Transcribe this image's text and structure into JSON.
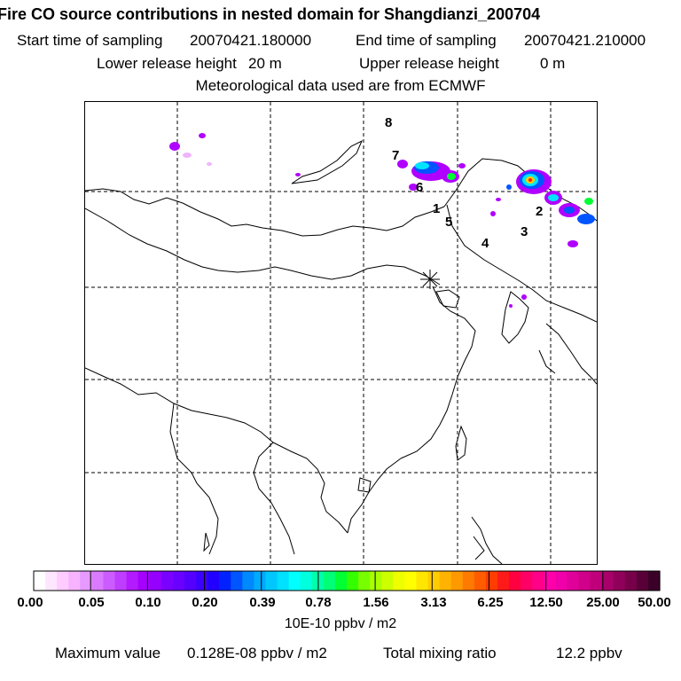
{
  "title": "Fire CO source contributions in nested domain for Shangdianzi_200704",
  "sampling": {
    "start_label": "Start time of sampling",
    "start_value": "20070421.180000",
    "end_label": "End time of sampling",
    "end_value": "20070421.210000"
  },
  "release": {
    "lower_label": "Lower release height",
    "lower_value": "20 m",
    "upper_label": "Upper release height",
    "upper_value": "0 m"
  },
  "meteo_note": "Meteorological data used are from ECMWF",
  "map": {
    "region_labels": [
      "1",
      "2",
      "3",
      "4",
      "5",
      "6",
      "7",
      "8"
    ],
    "station_marker": "asterisk-icon",
    "plume_color_high": "#ff2a2a",
    "plume_color_mid": "#00e5ff",
    "plume_color_low": "#b000ff"
  },
  "colorbar": {
    "tick_labels": [
      "0.00",
      "0.05",
      "0.10",
      "0.20",
      "0.39",
      "0.78",
      "1.56",
      "3.13",
      "6.25",
      "12.50",
      "25.00",
      "50.00"
    ],
    "unit": "10E-10 ppbv / m2",
    "colors": [
      "#ffffff",
      "#ffe6ff",
      "#ffccff",
      "#f7b3ff",
      "#e699ff",
      "#d97aff",
      "#cc5cff",
      "#bf3dff",
      "#b31aff",
      "#a600ff",
      "#9500ff",
      "#7a00ff",
      "#6a00ff",
      "#5500ff",
      "#3d00ff",
      "#2200ff",
      "#0022ff",
      "#0055ff",
      "#0088ff",
      "#00aaff",
      "#00c8ff",
      "#00e0ff",
      "#00ffff",
      "#00ffdd",
      "#00ffaa",
      "#00ff77",
      "#00ff33",
      "#33ff00",
      "#77ff00",
      "#aaff00",
      "#ccff00",
      "#eeff00",
      "#ffff00",
      "#ffe600",
      "#ffcc00",
      "#ffb300",
      "#ff9900",
      "#ff7a00",
      "#ff5c00",
      "#ff3d00",
      "#ff1a1a",
      "#ff0040",
      "#ff0066",
      "#ff0088",
      "#ff00aa",
      "#f000aa",
      "#e0009a",
      "#d0008a",
      "#c0007a",
      "#a8006a",
      "#90005a",
      "#78004a",
      "#5a0038",
      "#3a0028"
    ]
  },
  "footer": {
    "max_label": "Maximum value",
    "max_value": "0.128E-08 ppbv / m2",
    "total_label": "Total mixing ratio",
    "total_value": "12.2 ppbv"
  }
}
